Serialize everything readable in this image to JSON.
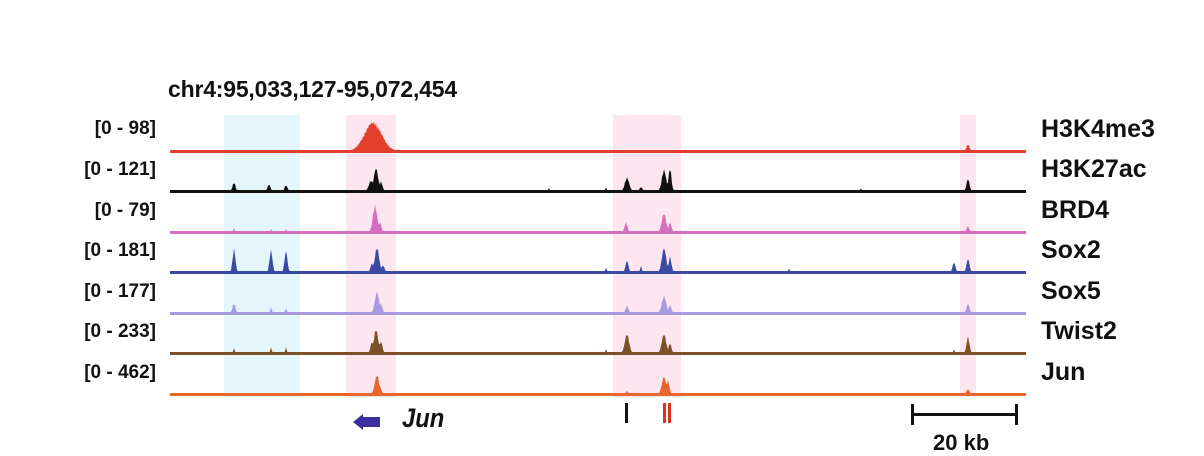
{
  "locus": "chr4:95,033,127-95,072,454",
  "colors": {
    "highlight_blue": "#e4f6fb",
    "highlight_pink": "#fde6f0",
    "gene": "#3b2fa0",
    "enhancer_black": "#111111",
    "enhancer_red": "#e0301e"
  },
  "tracks": [
    {
      "name": "H3K4me3",
      "range": "[0 - 98]",
      "color": "#e2402b"
    },
    {
      "name": "H3K27ac",
      "range": "[0 - 121]",
      "color": "#111111"
    },
    {
      "name": "BRD4",
      "range": "[0 - 79]",
      "color": "#d46fc0"
    },
    {
      "name": "Sox2",
      "range": "[0 - 181]",
      "color": "#3a4aa3"
    },
    {
      "name": "Sox5",
      "range": "[0 - 177]",
      "color": "#a99ae0"
    },
    {
      "name": "Twist2",
      "range": "[0 - 233]",
      "color": "#7e5028"
    },
    {
      "name": "Jun",
      "range": "[0 - 462]",
      "color": "#e8652c"
    }
  ],
  "gene": {
    "name": "Jun",
    "strand": "minus"
  },
  "scale_bar": {
    "label": "20 kb"
  }
}
